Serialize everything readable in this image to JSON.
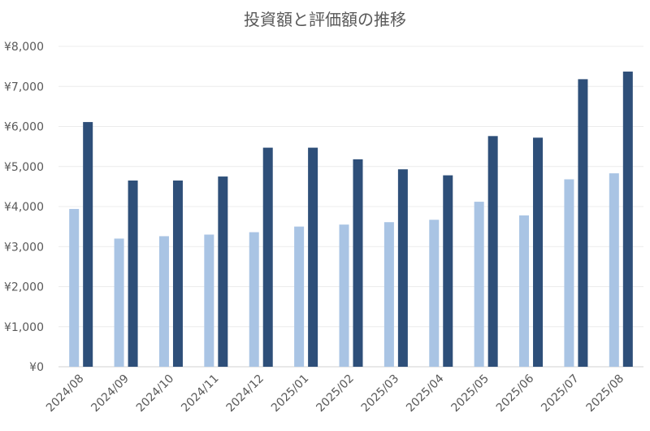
{
  "chart_data": {
    "type": "bar",
    "title": "投資額と評価額の推移",
    "categories": [
      "2024/08",
      "2024/09",
      "2024/10",
      "2024/11",
      "2024/12",
      "2025/01",
      "2025/02",
      "2025/03",
      "2025/04",
      "2025/05",
      "2025/06",
      "2025/07",
      "2025/08"
    ],
    "series": [
      {
        "values": [
          3940,
          3200,
          3260,
          3300,
          3360,
          3500,
          3550,
          3610,
          3670,
          4120,
          3780,
          4680,
          4830
        ],
        "color": "#a9c4e4"
      },
      {
        "values": [
          6110,
          4650,
          4650,
          4750,
          5470,
          5470,
          5180,
          4930,
          4780,
          5760,
          5720,
          7180,
          7370
        ],
        "color": "#2e4f79"
      }
    ],
    "ylim": [
      0,
      8000
    ],
    "yticks": [
      0,
      1000,
      2000,
      3000,
      4000,
      5000,
      6000,
      7000,
      8000
    ],
    "ytick_labels": [
      "¥0",
      "¥1,000",
      "¥2,000",
      "¥3,000",
      "¥4,000",
      "¥5,000",
      "¥6,000",
      "¥7,000",
      "¥8,000"
    ],
    "grid": true,
    "legend": "none"
  }
}
